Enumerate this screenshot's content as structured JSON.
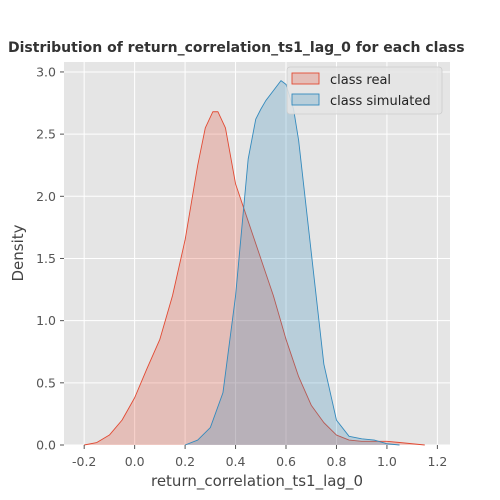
{
  "chart_data": {
    "type": "area",
    "title": "Distribution of return_correlation_ts1_lag_0 for each class",
    "xlabel": "return_correlation_ts1_lag_0",
    "ylabel": "Density",
    "xlim": [
      -0.28,
      1.25
    ],
    "ylim": [
      0,
      3.08
    ],
    "x_ticks": [
      "-0.2",
      "0.0",
      "0.2",
      "0.4",
      "0.6",
      "0.8",
      "1.0",
      "1.2"
    ],
    "y_ticks": [
      "0.0",
      "0.5",
      "1.0",
      "1.5",
      "2.0",
      "2.5",
      "3.0"
    ],
    "grid": true,
    "legend_position": "top-right",
    "series": [
      {
        "name": "class real",
        "color": "#E24A33",
        "x": [
          -0.2,
          -0.15,
          -0.1,
          -0.05,
          0.0,
          0.05,
          0.1,
          0.15,
          0.2,
          0.25,
          0.28,
          0.31,
          0.33,
          0.36,
          0.4,
          0.45,
          0.5,
          0.55,
          0.6,
          0.65,
          0.7,
          0.75,
          0.8,
          0.85,
          0.9,
          0.95,
          1.0,
          1.05,
          1.1,
          1.15
        ],
        "y": [
          0.0,
          0.02,
          0.08,
          0.2,
          0.38,
          0.62,
          0.85,
          1.2,
          1.65,
          2.25,
          2.55,
          2.68,
          2.68,
          2.55,
          2.1,
          1.8,
          1.5,
          1.2,
          0.85,
          0.55,
          0.32,
          0.18,
          0.08,
          0.04,
          0.03,
          0.03,
          0.03,
          0.02,
          0.01,
          0.0
        ]
      },
      {
        "name": "class simulated",
        "color": "#348ABD",
        "x": [
          0.2,
          0.25,
          0.3,
          0.35,
          0.4,
          0.45,
          0.48,
          0.5,
          0.52,
          0.55,
          0.58,
          0.6,
          0.63,
          0.65,
          0.7,
          0.75,
          0.8,
          0.85,
          0.9,
          0.95,
          1.0,
          1.05
        ],
        "y": [
          0.0,
          0.04,
          0.14,
          0.42,
          1.2,
          2.3,
          2.62,
          2.7,
          2.77,
          2.85,
          2.93,
          2.9,
          2.7,
          2.45,
          1.55,
          0.65,
          0.2,
          0.07,
          0.05,
          0.04,
          0.01,
          0.0
        ]
      }
    ]
  }
}
